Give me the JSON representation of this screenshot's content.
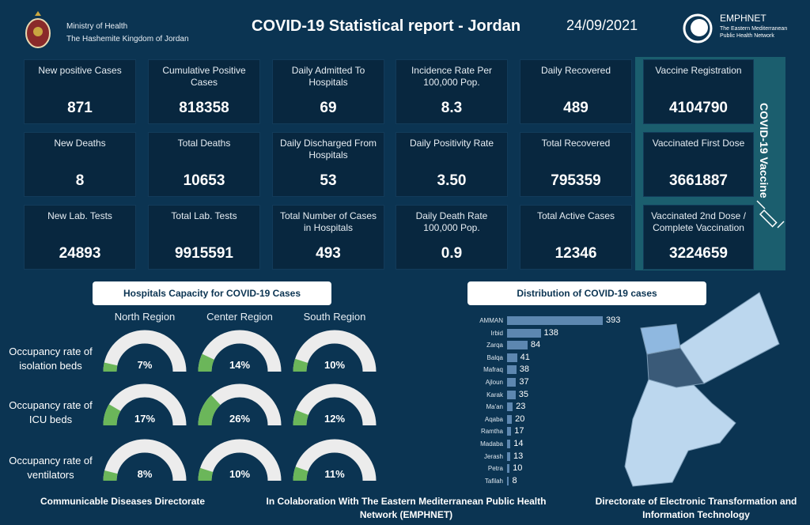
{
  "header": {
    "org_line1": "Ministry of Health",
    "org_line2": "The Hashemite Kingdom of Jordan",
    "title": "COVID-19 Statistical report - Jordan",
    "date": "24/09/2021",
    "partner_name": "EMPHNET",
    "partner_sub1": "The Eastern Mediterranean",
    "partner_sub2": "Public Health Network"
  },
  "cards": [
    {
      "label": "New positive Cases",
      "value": "871"
    },
    {
      "label": "Cumulative  Positive Cases",
      "value": "818358"
    },
    {
      "label": "Daily Admitted To Hospitals",
      "value": "69"
    },
    {
      "label": "Incidence Rate Per 100,000 Pop.",
      "value": "8.3"
    },
    {
      "label": "Daily Recovered",
      "value": "489"
    },
    {
      "label": "New Deaths",
      "value": "8"
    },
    {
      "label": "Total Deaths",
      "value": "10653"
    },
    {
      "label": "Daily Discharged From Hospitals",
      "value": "53"
    },
    {
      "label": "Daily Positivity Rate",
      "value": "3.50"
    },
    {
      "label": "Total Recovered",
      "value": "795359"
    },
    {
      "label": "New Lab. Tests",
      "value": "24893"
    },
    {
      "label": "Total Lab. Tests",
      "value": "9915591"
    },
    {
      "label": "Total Number of Cases in Hospitals",
      "value": "493"
    },
    {
      "label": "Daily Death Rate 100,000 Pop.",
      "value": "0.9"
    },
    {
      "label": "Total Active Cases",
      "value": "12346"
    }
  ],
  "vaccine": {
    "title": "COVID-19 Vaccine",
    "icon": "syringe-icon",
    "cards": [
      {
        "label": "Vaccine Registration",
        "value": "4104790"
      },
      {
        "label": "Vaccinated First Dose",
        "value": "3661887"
      },
      {
        "label": "Vaccinated 2nd Dose / Complete Vaccination",
        "value": "3224659"
      }
    ]
  },
  "hospitals": {
    "title": "Hospitals Capacity for COVID-19 Cases",
    "regions": [
      "North Region",
      "Center Region",
      "South Region"
    ],
    "rows": [
      {
        "label": "Occupancy rate of isolation beds",
        "values": [
          7,
          14,
          10
        ]
      },
      {
        "label": "Occupancy rate of ICU beds",
        "values": [
          17,
          26,
          12
        ]
      },
      {
        "label": "Occupancy rate of ventilators",
        "values": [
          8,
          10,
          11
        ]
      }
    ],
    "fill_color": "#6bb65a",
    "track_color": "#ececec"
  },
  "chart_data": {
    "type": "bar",
    "title": "Distribution of COVID-19 cases",
    "orientation": "horizontal",
    "categories": [
      "AMMAN",
      "Irbid",
      "Zarqa",
      "Balqa",
      "Mafraq",
      "Ajloun",
      "Karak",
      "Ma'an",
      "Aqaba",
      "Ramtha",
      "Madaba",
      "Jerash",
      "Petra",
      "Tafilah"
    ],
    "values": [
      393,
      138,
      84,
      41,
      38,
      37,
      35,
      23,
      20,
      17,
      14,
      13,
      10,
      8
    ],
    "bar_color": "#5d87b0"
  },
  "footer": {
    "left": "Communicable Diseases Directorate",
    "center": "In Colaboration With The Eastern Mediterranean Public Health Network (EMPHNET)",
    "right": "Directorate of Electronic Transformation and  Information Technology"
  }
}
